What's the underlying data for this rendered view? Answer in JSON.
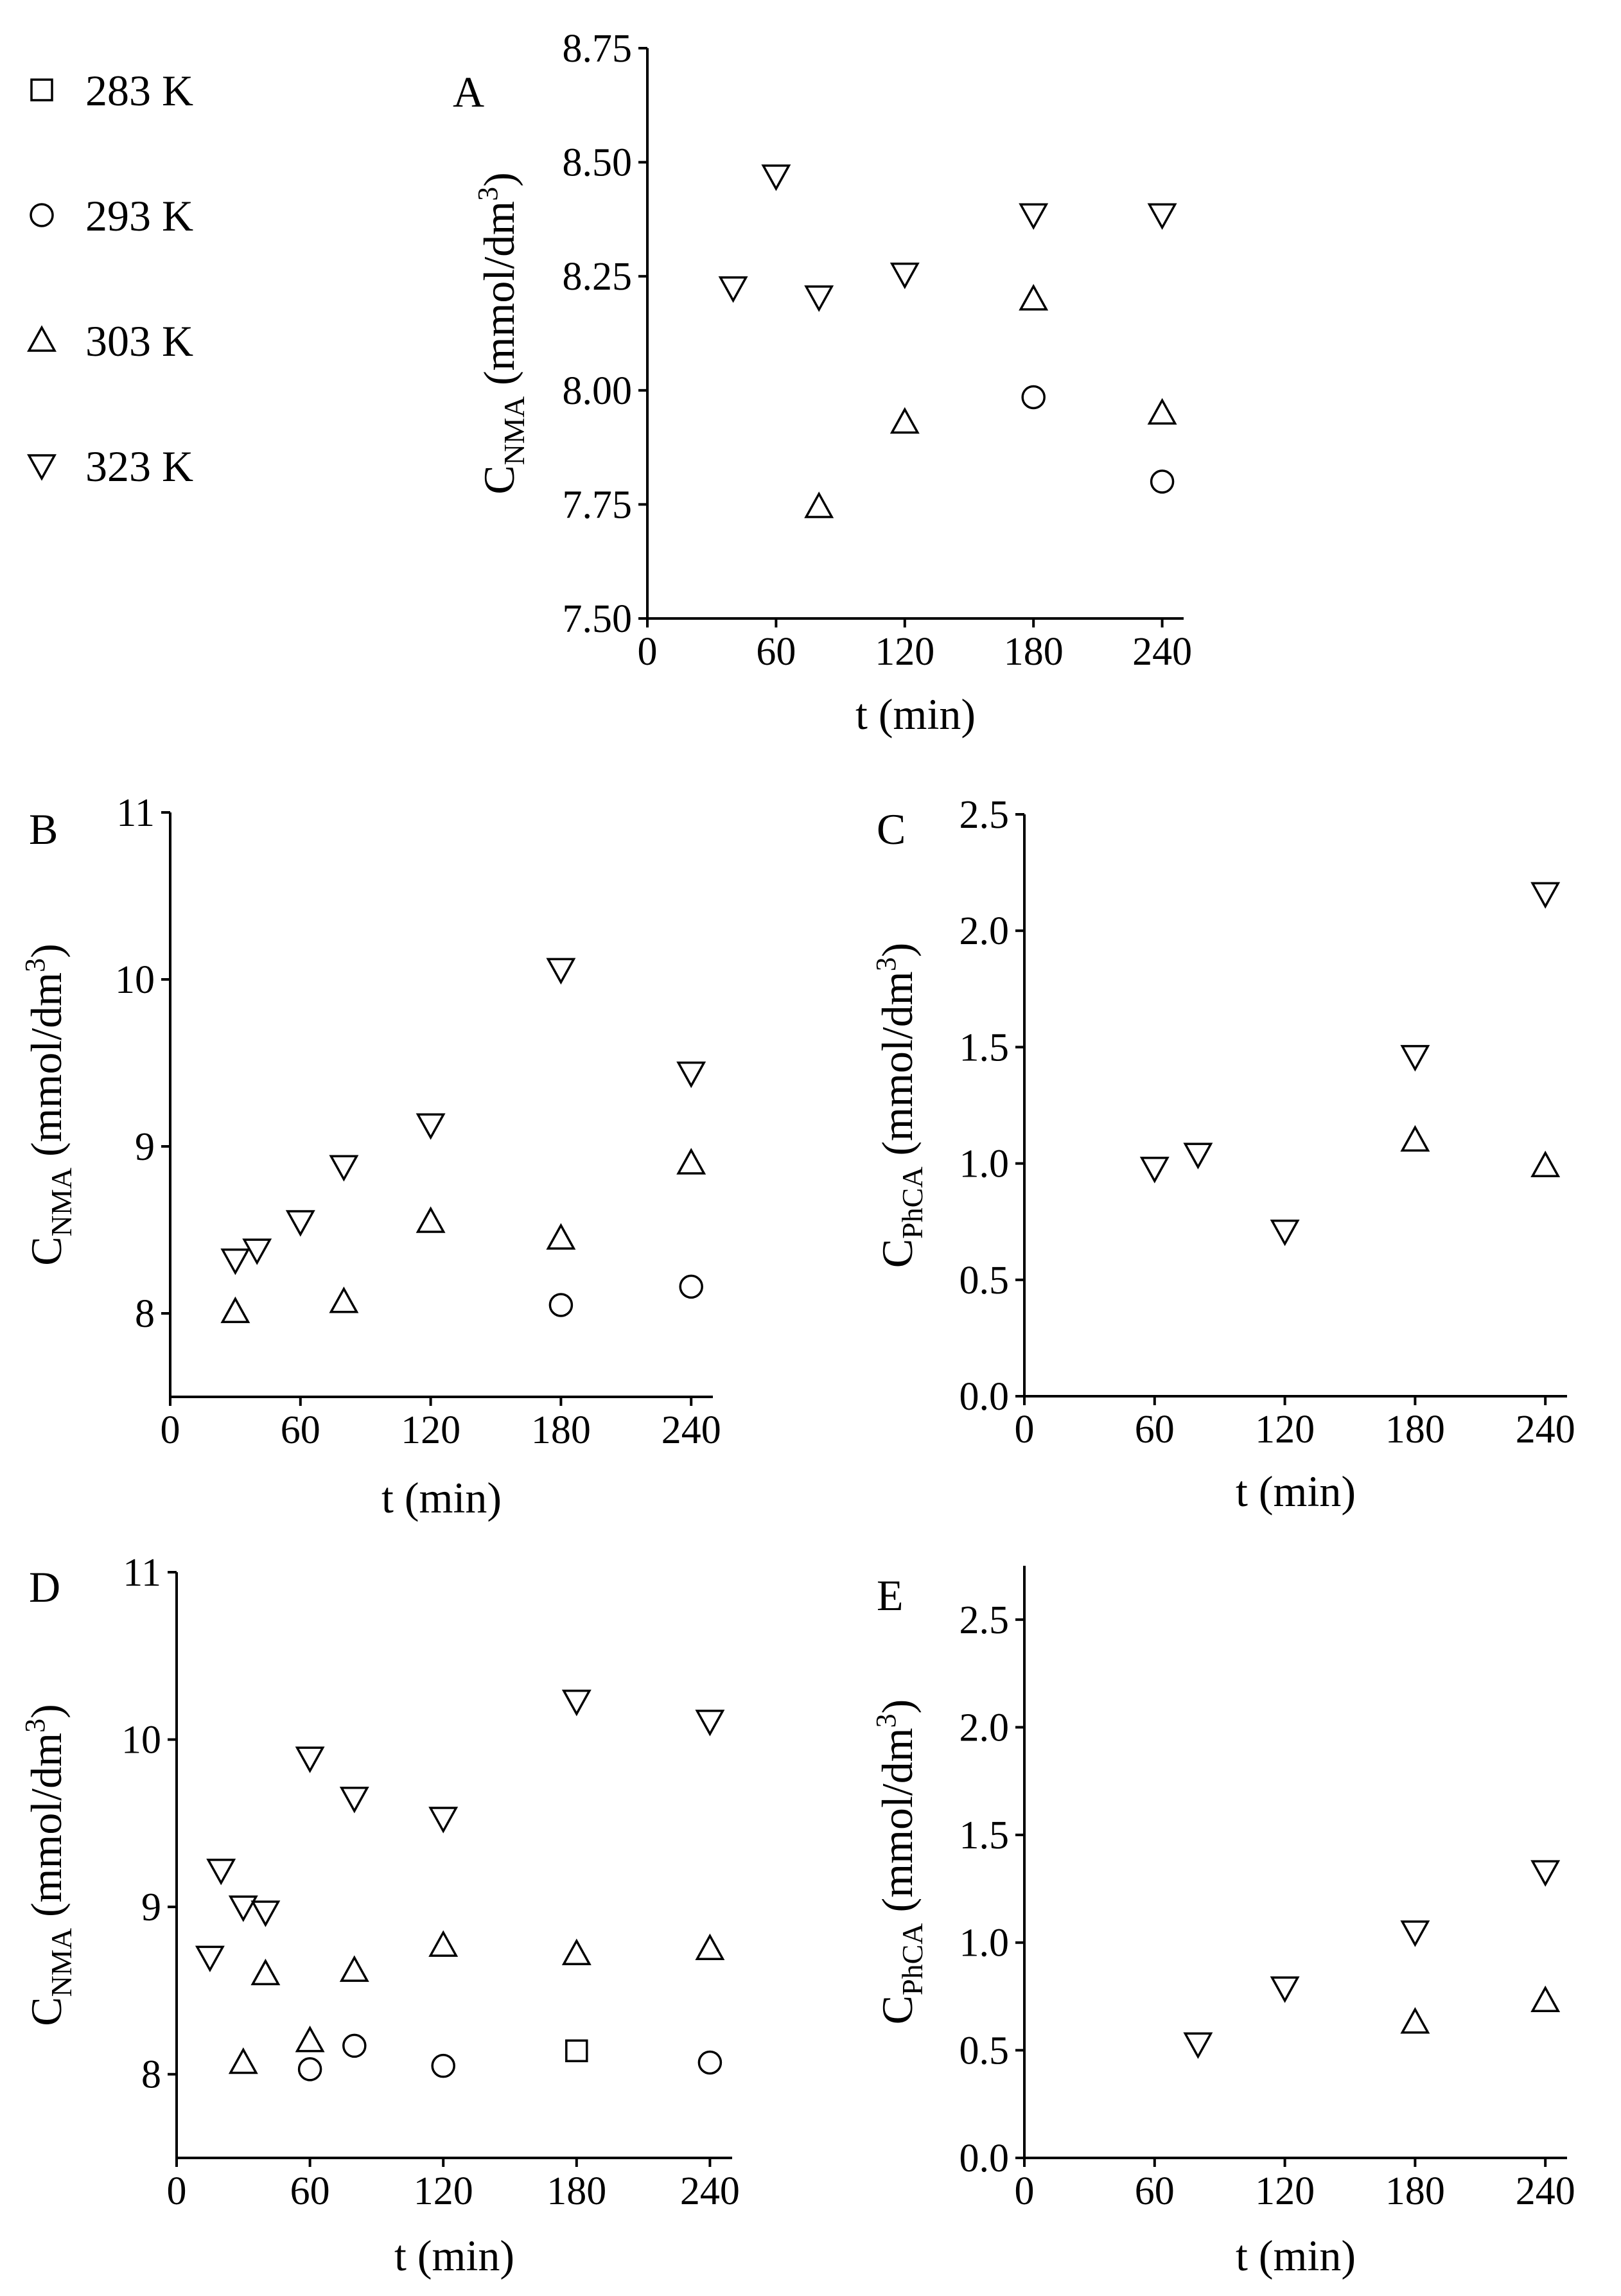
{
  "chart_data": [
    {
      "panel": "A",
      "type": "scatter",
      "xlabel": "t (min)",
      "ylabel_main": "C",
      "ylabel_sub": "NMA",
      "ylabel_unit_pre": " (mmol/dm",
      "ylabel_unit_exp": "3",
      "ylabel_unit_post": ")",
      "xlim": [
        0,
        250
      ],
      "ylim": [
        7.5,
        8.75
      ],
      "xticks": [
        0,
        60,
        120,
        180,
        240
      ],
      "yticks": [
        7.5,
        7.75,
        8.0,
        8.25,
        8.5,
        8.75
      ],
      "ytick_labels": [
        "7.50",
        "7.75",
        "8.00",
        "8.25",
        "8.50",
        "8.75"
      ],
      "series": [
        {
          "name": "293 K",
          "marker": "circle",
          "points": [
            [
              180,
              7.985
            ],
            [
              240,
              7.8
            ]
          ]
        },
        {
          "name": "303 K",
          "marker": "triangle-up",
          "points": [
            [
              80,
              7.745
            ],
            [
              120,
              7.93
            ],
            [
              180,
              8.2
            ],
            [
              240,
              7.95
            ]
          ]
        },
        {
          "name": "323 K",
          "marker": "triangle-down",
          "points": [
            [
              40,
              8.225
            ],
            [
              60,
              8.47
            ],
            [
              80,
              8.205
            ],
            [
              120,
              8.255
            ],
            [
              180,
              8.385
            ],
            [
              240,
              8.385
            ]
          ]
        }
      ]
    },
    {
      "panel": "B",
      "type": "scatter",
      "xlabel": "t (min)",
      "ylabel_main": "C",
      "ylabel_sub": "NMA",
      "ylabel_unit_pre": " (mmol/dm",
      "ylabel_unit_exp": "3",
      "ylabel_unit_post": ")",
      "xlim": [
        0,
        250
      ],
      "ylim": [
        7.5,
        11
      ],
      "xticks": [
        0,
        60,
        120,
        180,
        240
      ],
      "yticks": [
        8,
        9,
        10,
        11
      ],
      "ytick_labels": [
        "8",
        "9",
        "10",
        "11"
      ],
      "series": [
        {
          "name": "293 K",
          "marker": "circle",
          "points": [
            [
              180,
              8.05
            ],
            [
              240,
              8.16
            ]
          ]
        },
        {
          "name": "303 K",
          "marker": "triangle-up",
          "points": [
            [
              30,
              8.01
            ],
            [
              80,
              8.07
            ],
            [
              120,
              8.55
            ],
            [
              180,
              8.45
            ],
            [
              240,
              8.9
            ]
          ]
        },
        {
          "name": "323 K",
          "marker": "triangle-down",
          "points": [
            [
              30,
              8.32
            ],
            [
              40,
              8.38
            ],
            [
              60,
              8.55
            ],
            [
              80,
              8.88
            ],
            [
              120,
              9.13
            ],
            [
              180,
              10.06
            ],
            [
              240,
              9.44
            ]
          ]
        }
      ]
    },
    {
      "panel": "C",
      "type": "scatter",
      "xlabel": "t (min)",
      "ylabel_main": "C",
      "ylabel_sub": "PhCA",
      "ylabel_unit_pre": " (mmol/dm",
      "ylabel_unit_exp": "3",
      "ylabel_unit_post": ")",
      "xlim": [
        0,
        250
      ],
      "ylim": [
        0,
        2.5
      ],
      "xticks": [
        0,
        60,
        120,
        180,
        240
      ],
      "yticks": [
        0,
        0.5,
        1.0,
        1.5,
        2.0,
        2.5
      ],
      "ytick_labels": [
        "0.0",
        "0.5",
        "1.0",
        "1.5",
        "2.0",
        "2.5"
      ],
      "series": [
        {
          "name": "303 K",
          "marker": "triangle-up",
          "points": [
            [
              180,
              1.1
            ],
            [
              240,
              0.99
            ]
          ]
        },
        {
          "name": "323 K",
          "marker": "triangle-down",
          "points": [
            [
              60,
              0.98
            ],
            [
              80,
              1.04
            ],
            [
              120,
              0.71
            ],
            [
              180,
              1.46
            ],
            [
              240,
              2.16
            ]
          ]
        }
      ]
    },
    {
      "panel": "D",
      "type": "scatter",
      "xlabel": "t (min)",
      "ylabel_main": "C",
      "ylabel_sub": "NMA",
      "ylabel_unit_pre": " (mmol/dm",
      "ylabel_unit_exp": "3",
      "ylabel_unit_post": ")",
      "xlim": [
        0,
        250
      ],
      "ylim": [
        7.5,
        11
      ],
      "xticks": [
        0,
        60,
        120,
        180,
        240
      ],
      "yticks": [
        8,
        9,
        10,
        11
      ],
      "ytick_labels": [
        "8",
        "9",
        "10",
        "11"
      ],
      "series": [
        {
          "name": "283 K",
          "marker": "square",
          "points": [
            [
              180,
              8.14
            ]
          ]
        },
        {
          "name": "293 K",
          "marker": "circle",
          "points": [
            [
              60,
              8.03
            ],
            [
              80,
              8.17
            ],
            [
              120,
              8.05
            ],
            [
              240,
              8.07
            ]
          ]
        },
        {
          "name": "303 K",
          "marker": "triangle-up",
          "points": [
            [
              30,
              8.07
            ],
            [
              40,
              8.6
            ],
            [
              60,
              8.2
            ],
            [
              80,
              8.62
            ],
            [
              120,
              8.77
            ],
            [
              180,
              8.72
            ],
            [
              240,
              8.75
            ]
          ]
        },
        {
          "name": "323 K",
          "marker": "triangle-down",
          "points": [
            [
              15,
              8.7
            ],
            [
              20,
              9.22
            ],
            [
              30,
              9.0
            ],
            [
              40,
              8.97
            ],
            [
              60,
              9.89
            ],
            [
              80,
              9.65
            ],
            [
              120,
              9.53
            ],
            [
              180,
              10.23
            ],
            [
              240,
              10.11
            ]
          ]
        }
      ]
    },
    {
      "panel": "E",
      "type": "scatter",
      "xlabel": "t (min)",
      "ylabel_main": "C",
      "ylabel_sub": "PhCA",
      "ylabel_unit_pre": " (mmol/dm",
      "ylabel_unit_exp": "3",
      "ylabel_unit_post": ")",
      "xlim": [
        0,
        250
      ],
      "ylim": [
        0,
        2.75
      ],
      "xticks": [
        0,
        60,
        120,
        180,
        240
      ],
      "yticks": [
        0,
        0.5,
        1.0,
        1.5,
        2.0,
        2.5
      ],
      "ytick_labels": [
        "0.0",
        "0.5",
        "1.0",
        "1.5",
        "2.0",
        "2.5"
      ],
      "series": [
        {
          "name": "303 K",
          "marker": "triangle-up",
          "points": [
            [
              180,
              0.63
            ],
            [
              240,
              0.73
            ]
          ]
        },
        {
          "name": "323 K",
          "marker": "triangle-down",
          "points": [
            [
              80,
              0.53
            ],
            [
              120,
              0.79
            ],
            [
              180,
              1.05
            ],
            [
              240,
              1.33
            ]
          ]
        }
      ]
    }
  ],
  "legend": [
    {
      "marker": "square",
      "label": "283 K"
    },
    {
      "marker": "circle",
      "label": "293 K"
    },
    {
      "marker": "triangle-up",
      "label": "303 K"
    },
    {
      "marker": "triangle-down",
      "label": "323 K"
    }
  ]
}
